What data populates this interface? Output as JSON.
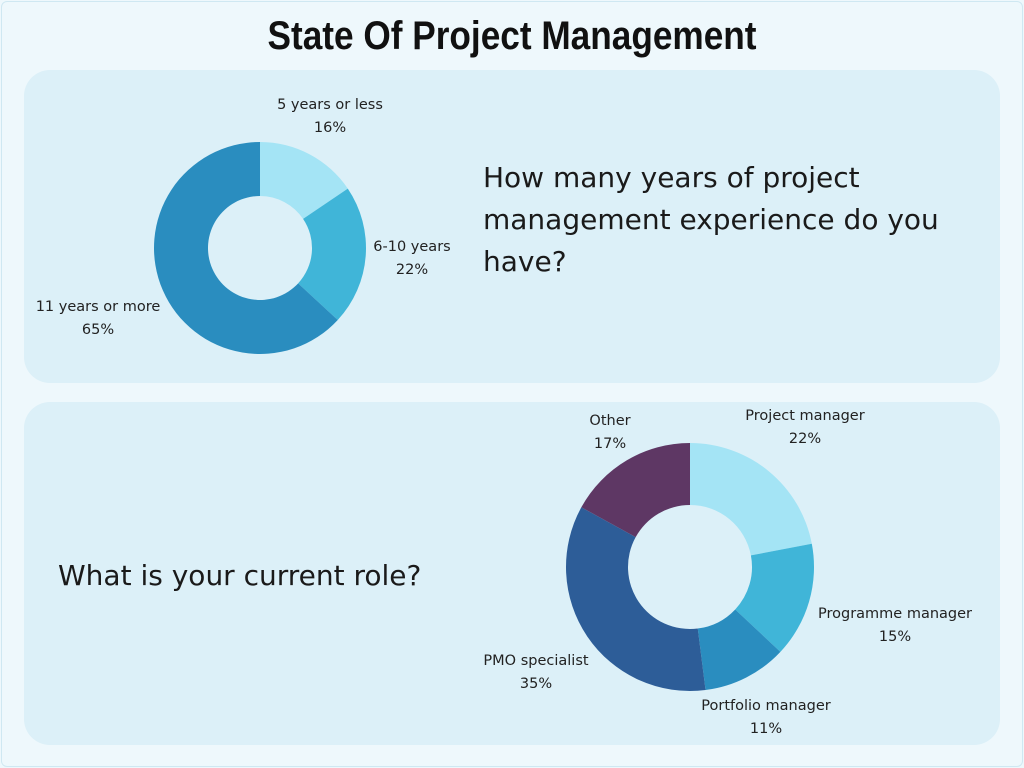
{
  "title": "State Of Project Management",
  "chart_data": [
    {
      "type": "pie",
      "donut": true,
      "question": "How many years of project management experience do you have?",
      "slices": [
        {
          "label": "5 years or less",
          "value": 16,
          "display": "16%",
          "color": "#a4e4f5"
        },
        {
          "label": "6-10 years",
          "value": 22,
          "display": "22%",
          "color": "#40b5d8"
        },
        {
          "label": "11 years or more",
          "value": 65,
          "display": "65%",
          "color": "#2a8dbf"
        }
      ]
    },
    {
      "type": "pie",
      "donut": true,
      "question": "What is your current role?",
      "slices": [
        {
          "label": "Project manager",
          "value": 22,
          "display": "22%",
          "color": "#a4e4f5"
        },
        {
          "label": "Programme manager",
          "value": 15,
          "display": "15%",
          "color": "#40b5d8"
        },
        {
          "label": "Portfolio manager",
          "value": 11,
          "display": "11%",
          "color": "#2a8dbf"
        },
        {
          "label": "PMO specialist",
          "value": 35,
          "display": "35%",
          "color": "#2d5d98"
        },
        {
          "label": "Other",
          "value": 17,
          "display": "17%",
          "color": "#5e3764"
        }
      ]
    }
  ]
}
